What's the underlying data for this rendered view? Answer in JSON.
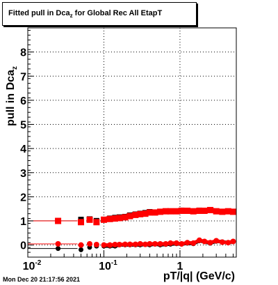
{
  "title": {
    "prefix": "Fitted pull in Dca",
    "sub": "z",
    "suffix": " for Global Rec All EtapT"
  },
  "timestamp": "Mon Dec 20 21:17:56 2021",
  "chart_data": {
    "type": "scatter",
    "xscale": "log",
    "xlim": [
      0.01,
      5.5
    ],
    "ylim": [
      -0.5,
      9.0
    ],
    "grid": true,
    "xlabel": "pT/|q| (GeV/c)",
    "ylabel_prefix": "pull in Dca",
    "ylabel_sub": "z",
    "ytick_labels": [
      "0",
      "1",
      "2",
      "3",
      "4",
      "5",
      "6",
      "7",
      "8"
    ],
    "yticks": [
      0,
      1,
      2,
      3,
      4,
      5,
      6,
      7,
      8
    ],
    "xtick_labels": [
      {
        "value": 0.01,
        "base": "10",
        "exp": "-2"
      },
      {
        "value": 0.1,
        "base": "10",
        "exp": "-1"
      },
      {
        "value": 1,
        "base": "1",
        "exp": ""
      }
    ],
    "series": [
      {
        "color": "#000000",
        "marker": "circle",
        "role": "mean",
        "x": [
          0.025,
          0.05,
          0.065,
          0.08,
          0.1,
          0.12,
          0.14,
          0.16,
          0.19,
          0.22,
          0.26,
          0.3,
          0.35,
          0.4,
          0.47,
          0.55,
          0.65,
          0.75,
          0.9,
          1.05,
          1.25,
          1.5,
          1.8,
          2.1,
          2.5,
          3.0,
          3.6,
          4.3,
          5.0
        ],
        "y": [
          -0.1,
          -0.15,
          -0.05,
          0.0,
          0.0,
          0.0,
          0.0,
          0.05,
          0.05,
          0.05,
          0.05,
          0.05,
          0.07,
          0.05,
          0.08,
          0.05,
          0.07,
          0.08,
          0.1,
          0.08,
          0.12,
          0.1,
          0.22,
          0.18,
          0.12,
          0.2,
          0.18,
          0.14,
          0.18
        ]
      },
      {
        "color": "#000000",
        "marker": "square",
        "role": "sigma",
        "x": [
          0.025,
          0.05,
          0.065,
          0.08,
          0.1,
          0.12,
          0.14,
          0.16,
          0.19,
          0.22,
          0.26,
          0.3,
          0.35,
          0.4,
          0.47,
          0.55,
          0.65,
          0.75,
          0.9,
          1.05,
          1.25,
          1.5,
          1.8,
          2.1,
          2.5,
          3.0,
          3.6,
          4.3,
          5.0
        ],
        "y": [
          1.05,
          1.1,
          1.12,
          1.05,
          1.1,
          1.15,
          1.18,
          1.2,
          1.22,
          1.28,
          1.32,
          1.35,
          1.38,
          1.42,
          1.4,
          1.42,
          1.45,
          1.45,
          1.45,
          1.48,
          1.47,
          1.45,
          1.48,
          1.47,
          1.5,
          1.45,
          1.42,
          1.45,
          1.42
        ]
      },
      {
        "color": "#ff0000",
        "marker": "circle",
        "role": "mean",
        "x": [
          0.025,
          0.05,
          0.065,
          0.08,
          0.1,
          0.12,
          0.14,
          0.16,
          0.19,
          0.22,
          0.26,
          0.3,
          0.35,
          0.4,
          0.47,
          0.55,
          0.65,
          0.75,
          0.9,
          1.05,
          1.25,
          1.5,
          1.8,
          2.1,
          2.5,
          3.0,
          3.6,
          4.3,
          5.0
        ],
        "y": [
          0.05,
          0.0,
          0.05,
          0.02,
          0.0,
          0.0,
          0.02,
          0.02,
          0.03,
          0.03,
          0.03,
          0.05,
          0.03,
          0.05,
          0.05,
          0.05,
          0.05,
          0.08,
          0.08,
          0.05,
          0.1,
          0.08,
          0.2,
          0.15,
          0.1,
          0.18,
          0.12,
          0.1,
          0.15
        ]
      },
      {
        "color": "#ff0000",
        "marker": "square",
        "role": "sigma",
        "x": [
          0.025,
          0.05,
          0.065,
          0.08,
          0.1,
          0.12,
          0.14,
          0.16,
          0.19,
          0.22,
          0.26,
          0.3,
          0.35,
          0.4,
          0.47,
          0.55,
          0.65,
          0.75,
          0.9,
          1.05,
          1.25,
          1.5,
          1.8,
          2.1,
          2.5,
          3.0,
          3.6,
          4.3,
          5.0
        ],
        "y": [
          1.0,
          0.95,
          1.05,
          0.95,
          1.05,
          1.08,
          1.1,
          1.12,
          1.15,
          1.2,
          1.25,
          1.28,
          1.3,
          1.35,
          1.35,
          1.38,
          1.4,
          1.4,
          1.4,
          1.42,
          1.42,
          1.4,
          1.42,
          1.42,
          1.45,
          1.4,
          1.38,
          1.4,
          1.38
        ]
      }
    ]
  }
}
